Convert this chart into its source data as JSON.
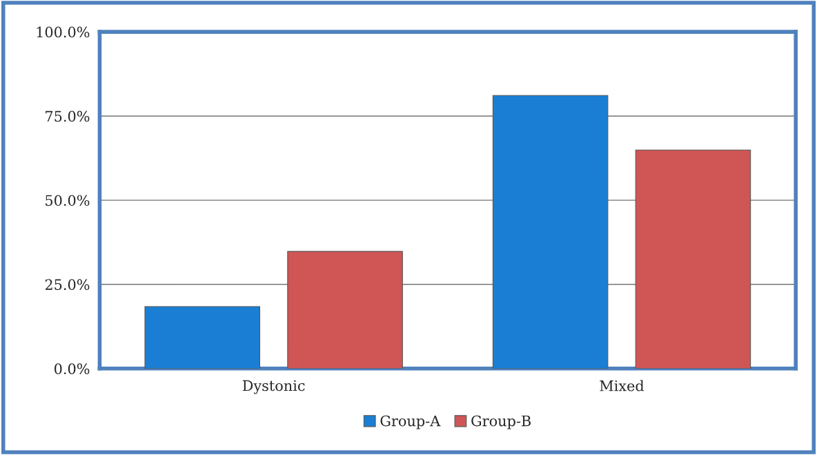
{
  "chart_data": {
    "type": "bar",
    "categories": [
      "Dystonic",
      "Mixed"
    ],
    "series": [
      {
        "name": "Group-A",
        "color": "#1a7fd4",
        "values": [
          18.4,
          81.1
        ]
      },
      {
        "name": "Group-B",
        "color": "#d05555",
        "values": [
          34.8,
          64.9
        ]
      }
    ],
    "ylim": [
      0,
      100
    ],
    "yticks": [
      {
        "value": 0,
        "label": "0.0%"
      },
      {
        "value": 25,
        "label": "25.0%"
      },
      {
        "value": 50,
        "label": "50.0%"
      },
      {
        "value": 75,
        "label": "75.0%"
      },
      {
        "value": 100,
        "label": "100.0%"
      }
    ],
    "grid": "y",
    "legend": "bottom"
  }
}
